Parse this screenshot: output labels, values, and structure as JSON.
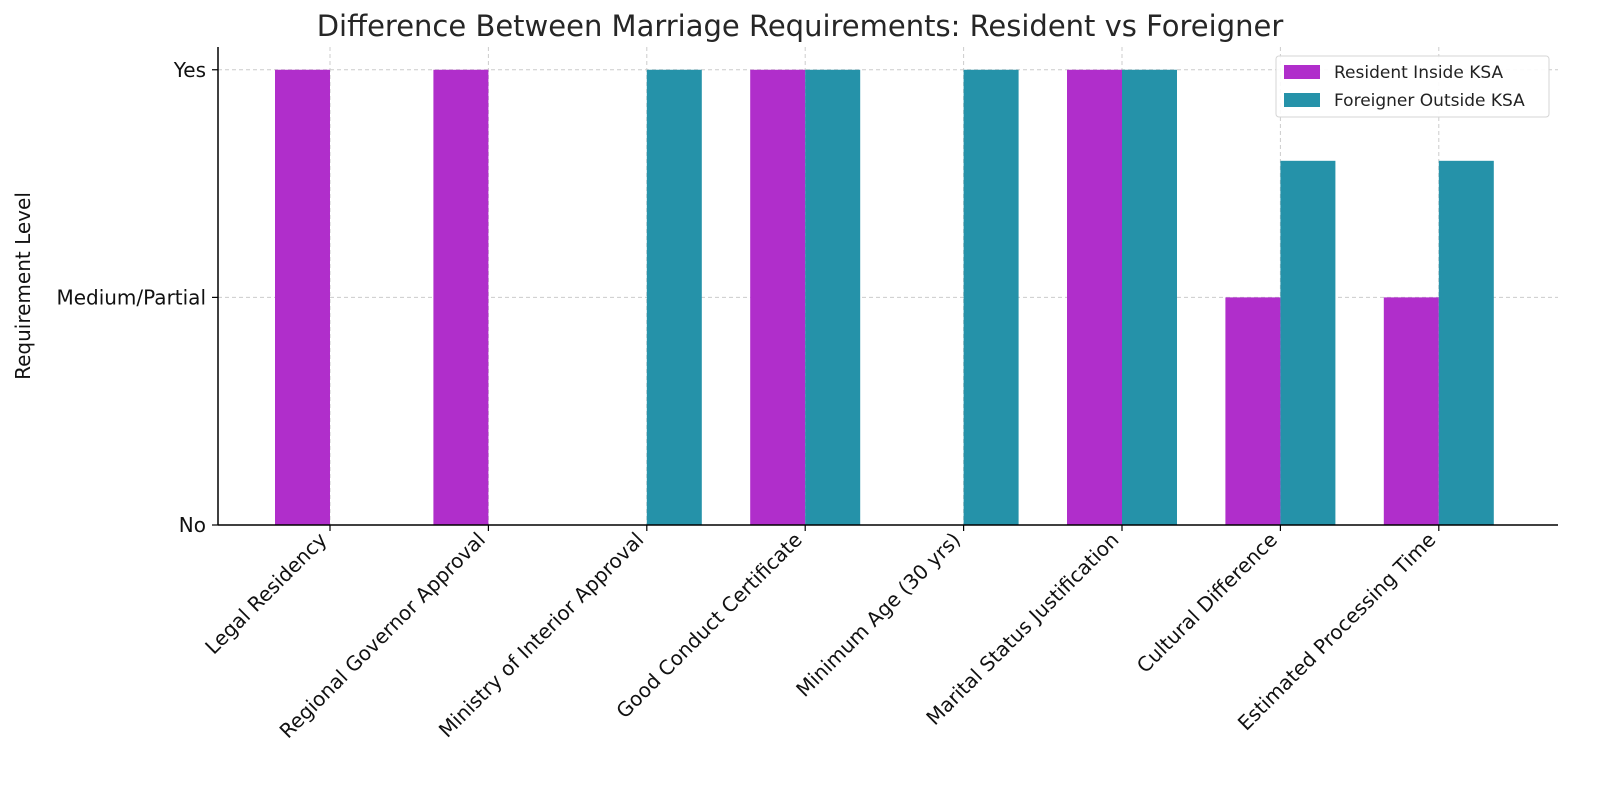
{
  "chart_data": {
    "type": "bar",
    "title": "Difference Between Marriage Requirements: Resident vs Foreigner",
    "xlabel": "",
    "ylabel": "Requirement Level",
    "categories": [
      "Legal Residency",
      "Regional Governor Approval",
      "Ministry of Interior Approval",
      "Good Conduct Certificate",
      "Minimum Age (30 yrs)",
      "Marital Status Justification",
      "Cultural Difference",
      "Estimated Processing Time"
    ],
    "yticks": [
      {
        "value": 0,
        "label": "No"
      },
      {
        "value": 1,
        "label": "Medium/Partial"
      },
      {
        "value": 2,
        "label": "Yes"
      }
    ],
    "ylim": [
      0,
      2.1
    ],
    "grid": true,
    "legend_position": "top-right",
    "series": [
      {
        "name": "Resident Inside KSA",
        "color": "#b02ecb",
        "values": [
          2,
          2,
          0,
          2,
          0,
          2,
          1,
          1
        ]
      },
      {
        "name": "Foreigner Outside KSA",
        "color": "#2592a9",
        "values": [
          0,
          0,
          2,
          2,
          2,
          2,
          1.6,
          1.6
        ]
      }
    ]
  }
}
